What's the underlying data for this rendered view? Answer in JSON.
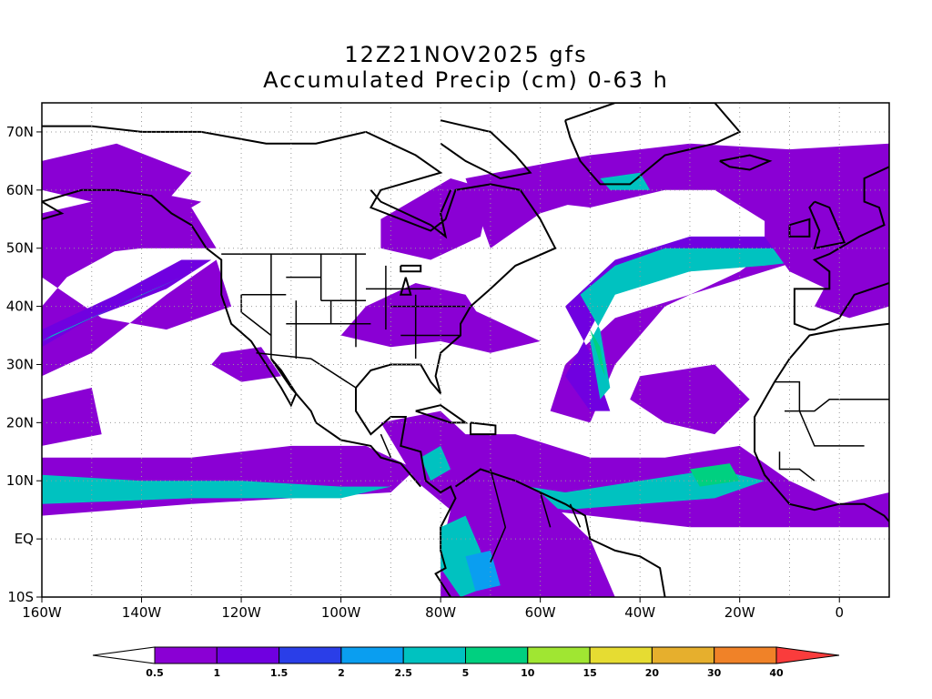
{
  "title_line1": "12Z21NOV2025 gfs",
  "title_line2": "Accumulated Precip (cm) 0-63 h",
  "lat_labels": [
    {
      "label": "70N",
      "lat": 70
    },
    {
      "label": "60N",
      "lat": 60
    },
    {
      "label": "50N",
      "lat": 50
    },
    {
      "label": "40N",
      "lat": 40
    },
    {
      "label": "30N",
      "lat": 30
    },
    {
      "label": "20N",
      "lat": 20
    },
    {
      "label": "10N",
      "lat": 10
    },
    {
      "label": "EQ",
      "lat": 0
    },
    {
      "label": "10S",
      "lat": -10
    }
  ],
  "lon_labels": [
    {
      "label": "160W",
      "lon": -160
    },
    {
      "label": "140W",
      "lon": -140
    },
    {
      "label": "120W",
      "lon": -120
    },
    {
      "label": "100W",
      "lon": -100
    },
    {
      "label": "80W",
      "lon": -80
    },
    {
      "label": "60W",
      "lon": -60
    },
    {
      "label": "40W",
      "lon": -40
    },
    {
      "label": "20W",
      "lon": -20
    },
    {
      "label": "0",
      "lon": 0
    }
  ],
  "map_extent": {
    "lon_min": -160,
    "lon_max": 10,
    "lat_min": -10,
    "lat_max": 75
  },
  "colorbar": {
    "labels": [
      "0.5",
      "1",
      "1.5",
      "2",
      "2.5",
      "5",
      "10",
      "15",
      "20",
      "30",
      "40"
    ],
    "colors": [
      "#8a00d4",
      "#7000e0",
      "#2a3ee8",
      "#0a9ef0",
      "#00c2c0",
      "#00d080",
      "#a0e632",
      "#e6dc32",
      "#e6af2d",
      "#f08228",
      "#fa3c3c"
    ]
  },
  "precip_colors": {
    "light": "#8a00d4",
    "medium": "#7000e0",
    "blue": "#2a3ee8",
    "cyan": "#00c2c0",
    "green": "#00d080",
    "aqua": "#0a9ef0"
  }
}
